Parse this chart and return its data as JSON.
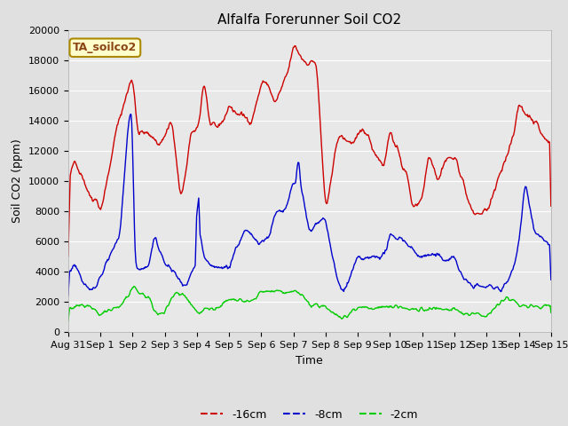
{
  "title": "Alfalfa Forerunner Soil CO2",
  "xlabel": "Time",
  "ylabel": "Soil CO2 (ppm)",
  "annotation": "TA_soilco2",
  "ylim": [
    0,
    20000
  ],
  "xtick_labels": [
    "Aug 31",
    "Sep 1",
    "Sep 2",
    "Sep 3",
    "Sep 4",
    "Sep 5",
    "Sep 6",
    "Sep 7",
    "Sep 8",
    "Sep 9",
    "Sep 10",
    "Sep 11",
    "Sep 12",
    "Sep 13",
    "Sep 14",
    "Sep 15"
  ],
  "legend_labels": [
    "-16cm",
    "-8cm",
    "-2cm"
  ],
  "line_colors": [
    "#cc0000",
    "#0000cc",
    "#00cc00"
  ],
  "fig_bg_color": "#e0e0e0",
  "plot_bg_color": "#e8e8e8",
  "title_fontsize": 11,
  "label_fontsize": 9,
  "tick_fontsize": 8,
  "legend_fontsize": 9,
  "seed": 42
}
